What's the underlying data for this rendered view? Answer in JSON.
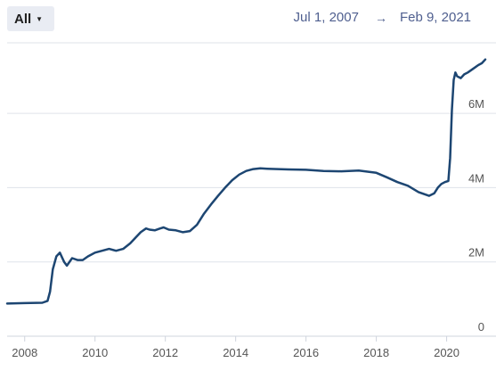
{
  "controls": {
    "range_label": "All",
    "range_caret": "▼",
    "start_date": "Jul 1, 2007",
    "range_arrow": "→",
    "end_date": "Feb 9, 2021"
  },
  "chart_data": {
    "type": "line",
    "title": "",
    "xlabel": "",
    "ylabel": "",
    "x_tick_labels": [
      "2008",
      "2010",
      "2012",
      "2014",
      "2016",
      "2018",
      "2020"
    ],
    "y_tick_labels": [
      "0",
      "2M",
      "4M",
      "6M"
    ],
    "xlim": [
      2007.5,
      2021.1
    ],
    "ylim": [
      0,
      7.9
    ],
    "grid": true,
    "line_color": "#1d4672",
    "series": [
      {
        "x": [
          2007.5,
          2008.0,
          2008.5,
          2008.65,
          2008.72,
          2008.8,
          2008.9,
          2009.0,
          2009.12,
          2009.2,
          2009.35,
          2009.5,
          2009.65,
          2009.8,
          2010.0,
          2010.2,
          2010.4,
          2010.6,
          2010.8,
          2011.0,
          2011.15,
          2011.3,
          2011.45,
          2011.55,
          2011.7,
          2011.85,
          2011.95,
          2012.1,
          2012.3,
          2012.5,
          2012.7,
          2012.9,
          2013.1,
          2013.3,
          2013.5,
          2013.7,
          2013.9,
          2014.1,
          2014.3,
          2014.5,
          2014.7,
          2014.9,
          2015.2,
          2015.5,
          2016.0,
          2016.5,
          2017.0,
          2017.5,
          2018.0,
          2018.3,
          2018.6,
          2018.9,
          2019.2,
          2019.5,
          2019.65,
          2019.75,
          2019.85,
          2019.95,
          2020.05,
          2020.1,
          2020.15,
          2020.2,
          2020.25,
          2020.3,
          2020.4,
          2020.5,
          2020.6,
          2020.75,
          2020.9,
          2021.0,
          2021.1
        ],
        "y": [
          0.88,
          0.89,
          0.9,
          0.95,
          1.2,
          1.8,
          2.15,
          2.25,
          2.0,
          1.9,
          2.1,
          2.05,
          2.05,
          2.15,
          2.25,
          2.3,
          2.35,
          2.3,
          2.35,
          2.5,
          2.65,
          2.8,
          2.9,
          2.87,
          2.85,
          2.9,
          2.93,
          2.87,
          2.85,
          2.8,
          2.83,
          3.0,
          3.3,
          3.55,
          3.78,
          4.0,
          4.2,
          4.35,
          4.45,
          4.5,
          4.52,
          4.51,
          4.5,
          4.49,
          4.48,
          4.45,
          4.44,
          4.46,
          4.4,
          4.28,
          4.15,
          4.05,
          3.88,
          3.78,
          3.85,
          4.0,
          4.1,
          4.15,
          4.18,
          4.8,
          6.1,
          6.9,
          7.1,
          7.0,
          6.95,
          7.05,
          7.1,
          7.2,
          7.3,
          7.35,
          7.45
        ]
      }
    ]
  }
}
